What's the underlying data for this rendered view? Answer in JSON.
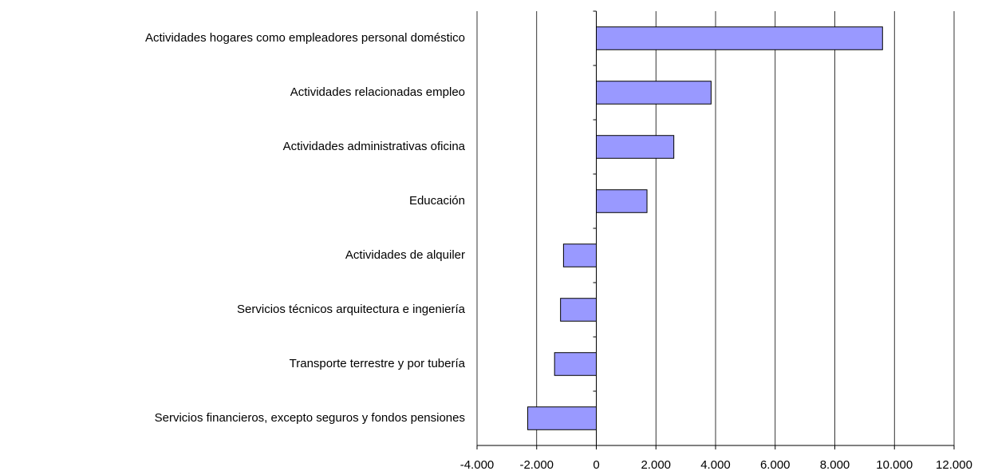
{
  "chart_data": {
    "type": "bar",
    "orientation": "horizontal",
    "categories": [
      "Actividades hogares como empleadores personal doméstico",
      "Actividades relacionadas empleo",
      "Actividades administrativas oficina",
      "Educación",
      "Actividades de alquiler",
      "Servicios técnicos arquitectura e ingeniería",
      "Transporte terrestre y por tubería",
      "Servicios financieros, excepto seguros y fondos pensiones"
    ],
    "values": [
      9600,
      3850,
      2600,
      1700,
      -1100,
      -1200,
      -1400,
      -2300
    ],
    "color": "#9999ff",
    "xlim": [
      -4000,
      12000
    ],
    "xticks": [
      {
        "value": -4000,
        "label": "-4.000"
      },
      {
        "value": -2000,
        "label": "-2.000"
      },
      0,
      {
        "value": 2000,
        "label": "2.000"
      },
      {
        "value": 4000,
        "label": "4.000"
      },
      {
        "value": 6000,
        "label": "6.000"
      },
      {
        "value": 8000,
        "label": "8.000"
      },
      {
        "value": 10000,
        "label": "10.000"
      },
      {
        "value": 12000,
        "label": "12.000"
      }
    ],
    "grid": true
  }
}
